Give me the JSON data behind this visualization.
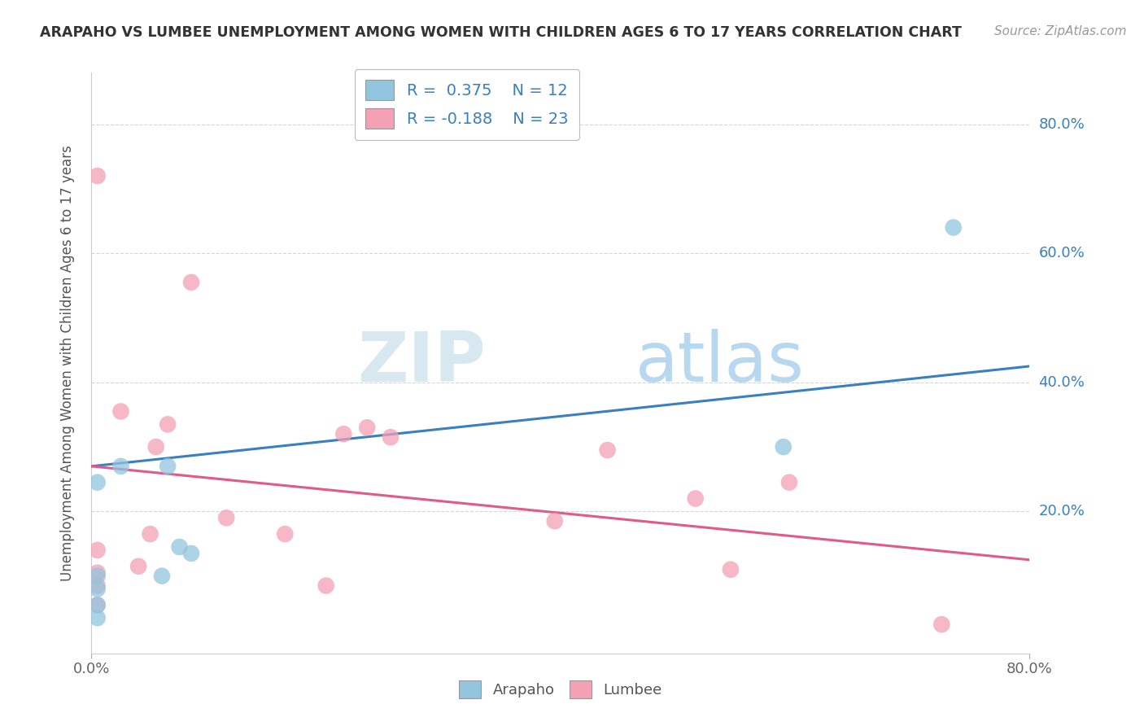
{
  "title": "ARAPAHO VS LUMBEE UNEMPLOYMENT AMONG WOMEN WITH CHILDREN AGES 6 TO 17 YEARS CORRELATION CHART",
  "source": "Source: ZipAtlas.com",
  "ylabel": "Unemployment Among Women with Children Ages 6 to 17 years",
  "xlim": [
    0.0,
    0.8
  ],
  "ylim": [
    -0.02,
    0.88
  ],
  "arapaho_color": "#92c5de",
  "lumbee_color": "#f4a0b5",
  "arapaho_line_color": "#3a7fc1",
  "lumbee_line_color": "#e05a8a",
  "arapaho_R": 0.375,
  "arapaho_N": 12,
  "lumbee_R": -0.188,
  "lumbee_N": 23,
  "arapaho_line_x0": 0.0,
  "arapaho_line_y0": 0.27,
  "arapaho_line_x1": 0.8,
  "arapaho_line_y1": 0.425,
  "lumbee_line_x0": 0.0,
  "lumbee_line_y0": 0.27,
  "lumbee_line_x1": 0.8,
  "lumbee_line_y1": 0.125,
  "arapaho_points_x": [
    0.005,
    0.005,
    0.005,
    0.005,
    0.005,
    0.025,
    0.06,
    0.065,
    0.075,
    0.085,
    0.59,
    0.735
  ],
  "arapaho_points_y": [
    0.035,
    0.055,
    0.08,
    0.1,
    0.245,
    0.27,
    0.1,
    0.27,
    0.145,
    0.135,
    0.3,
    0.64
  ],
  "lumbee_points_x": [
    0.005,
    0.005,
    0.005,
    0.005,
    0.005,
    0.025,
    0.04,
    0.05,
    0.055,
    0.065,
    0.085,
    0.115,
    0.165,
    0.2,
    0.215,
    0.235,
    0.255,
    0.395,
    0.44,
    0.515,
    0.545,
    0.595,
    0.725
  ],
  "lumbee_points_y": [
    0.055,
    0.085,
    0.105,
    0.14,
    0.72,
    0.355,
    0.115,
    0.165,
    0.3,
    0.335,
    0.555,
    0.19,
    0.165,
    0.085,
    0.32,
    0.33,
    0.315,
    0.185,
    0.295,
    0.22,
    0.11,
    0.245,
    0.025
  ],
  "watermark_zip": "ZIP",
  "watermark_atlas": "atlas",
  "watermark_zip_color": "#d8e8f0",
  "watermark_atlas_color": "#b8d8f0",
  "background_color": "#ffffff",
  "grid_color": "#cccccc",
  "ytick_labels": [
    "20.0%",
    "40.0%",
    "60.0%",
    "80.0%"
  ],
  "ytick_values": [
    0.2,
    0.4,
    0.6,
    0.8
  ],
  "xtick_labels": [
    "0.0%",
    "80.0%"
  ],
  "xtick_values": [
    0.0,
    0.8
  ]
}
